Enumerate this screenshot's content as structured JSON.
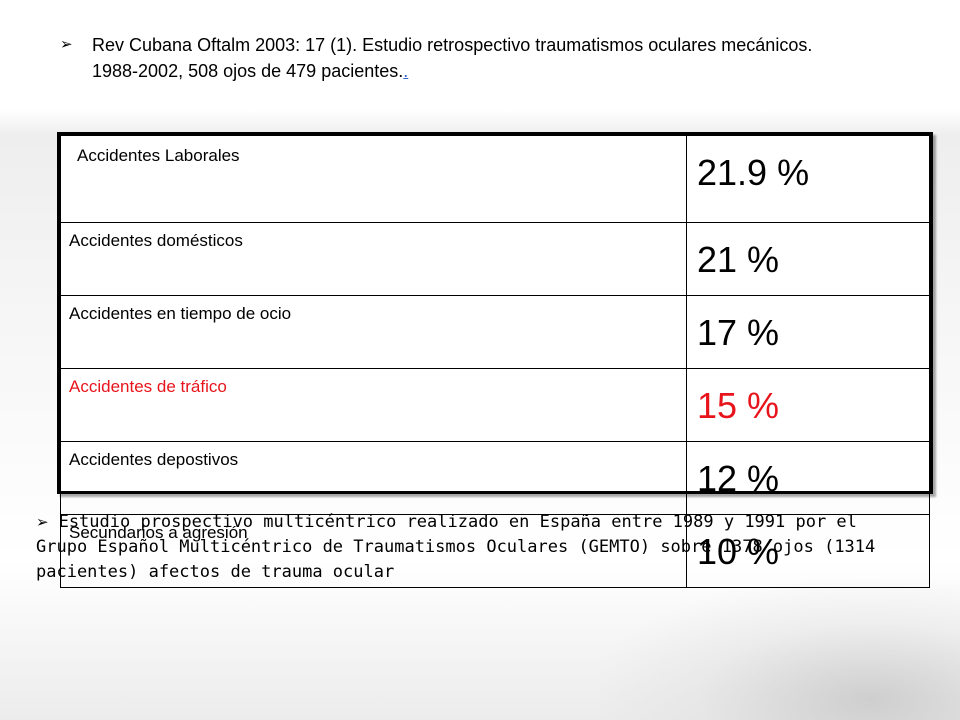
{
  "citation": {
    "bullet": "➢",
    "text": "Rev Cubana Oftalm 2003: 17 (1). Estudio retrospectivo traumatismos oculares mecánicos. 1988-2002, 508 ojos de 479 pacientes.",
    "link": "."
  },
  "table": {
    "rows": [
      {
        "label": "Accidentes Laborales",
        "value": "21.9 %"
      },
      {
        "label": "Accidentes domésticos",
        "value": "21 %"
      },
      {
        "label": "Accidentes en tiempo de ocio",
        "value": "17 %"
      },
      {
        "label": "Accidentes de tráfico",
        "value": "15 %"
      },
      {
        "label": "Accidentes depostivos",
        "value": "12 %"
      },
      {
        "label": "Secundarios a agresión",
        "value": "10 %"
      }
    ]
  },
  "study": {
    "bullet": "➢",
    "text": "Estudio prospectivo multicéntrico realizado en España entre 1989 y 1991 por el Grupo Español Multicéntrico de Traumatismos Oculares (GEMTO) sobre 1378 ojos (1314 pacientes) afectos de trauma ocular"
  },
  "colors": {
    "highlight_row": "#e8141c",
    "link": "#3366cc"
  }
}
